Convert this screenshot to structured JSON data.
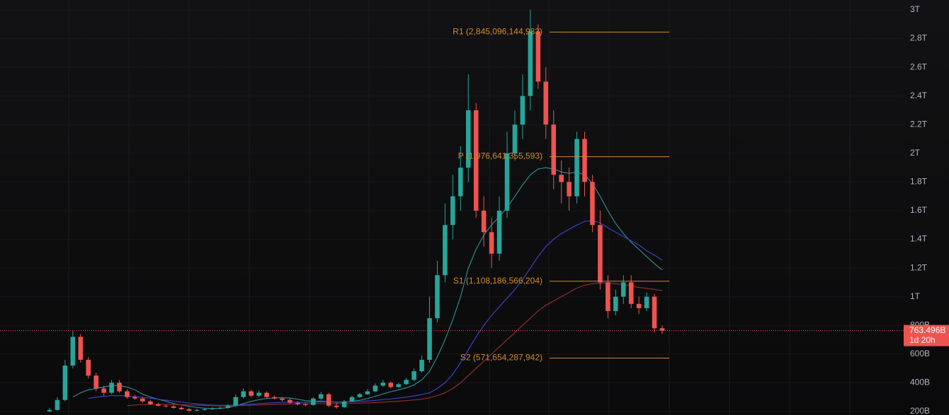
{
  "chart_data": {
    "type": "candlestick",
    "ylim": [
      175,
      3069
    ],
    "yticks": [
      {
        "value": 200,
        "label": "200B"
      },
      {
        "value": 400,
        "label": "400B"
      },
      {
        "value": 600,
        "label": "600B"
      },
      {
        "value": 800,
        "label": "800B"
      },
      {
        "value": 1000,
        "label": "1T"
      },
      {
        "value": 1200,
        "label": "1.2T"
      },
      {
        "value": 1400,
        "label": "1.4T"
      },
      {
        "value": 1600,
        "label": "1.6T"
      },
      {
        "value": 1800,
        "label": "1.8T"
      },
      {
        "value": 2000,
        "label": "2T"
      },
      {
        "value": 2200,
        "label": "2.2T"
      },
      {
        "value": 2400,
        "label": "2.4T"
      },
      {
        "value": 2600,
        "label": "2.6T"
      },
      {
        "value": 2800,
        "label": "2.8T"
      },
      {
        "value": 3000,
        "label": "3T"
      }
    ],
    "up_color": "#26a69a",
    "down_color": "#ef5350",
    "open": [
      200,
      210,
      280,
      520,
      720,
      560,
      450,
      360,
      330,
      400,
      340,
      300,
      290,
      270,
      250,
      240,
      235,
      225,
      215,
      205,
      210,
      215,
      220,
      225,
      240,
      300,
      340,
      310,
      330,
      300,
      290,
      280,
      260,
      250,
      245,
      290,
      320,
      240,
      230,
      270,
      300,
      320,
      340,
      380,
      400,
      370,
      390,
      420,
      480,
      560,
      850,
      1150,
      1500,
      1700,
      1900,
      2300,
      1600,
      1450,
      1300,
      1600,
      2000,
      2200,
      2400,
      2850,
      2500,
      2200,
      1850,
      1800,
      1700,
      2100,
      1800,
      1500,
      1100,
      900,
      1000,
      1100,
      950,
      920,
      1000,
      780
    ],
    "high": [
      225,
      300,
      560,
      760,
      740,
      580,
      470,
      380,
      420,
      420,
      355,
      315,
      300,
      280,
      260,
      250,
      245,
      235,
      225,
      220,
      225,
      230,
      235,
      250,
      320,
      360,
      350,
      345,
      340,
      310,
      300,
      290,
      270,
      260,
      300,
      335,
      330,
      260,
      280,
      310,
      330,
      355,
      395,
      420,
      410,
      400,
      435,
      500,
      590,
      1000,
      1250,
      1650,
      1850,
      2050,
      2550,
      2350,
      1700,
      1550,
      1700,
      2150,
      2300,
      2550,
      3000,
      2900,
      2600,
      2300,
      1950,
      1900,
      2150,
      2150,
      1850,
      1600,
      1150,
      1050,
      1150,
      1150,
      1000,
      1030,
      1020,
      800
    ],
    "low": [
      195,
      205,
      270,
      500,
      540,
      430,
      340,
      310,
      320,
      330,
      290,
      280,
      260,
      245,
      235,
      228,
      220,
      210,
      200,
      200,
      205,
      210,
      215,
      220,
      232,
      290,
      300,
      300,
      295,
      285,
      270,
      250,
      240,
      235,
      240,
      280,
      230,
      220,
      225,
      265,
      295,
      315,
      335,
      370,
      360,
      365,
      385,
      410,
      470,
      540,
      820,
      1100,
      1400,
      1600,
      1800,
      1550,
      1350,
      1200,
      1250,
      1550,
      1950,
      2100,
      2300,
      2450,
      2100,
      1750,
      1650,
      1600,
      1650,
      1700,
      1450,
      1050,
      850,
      870,
      950,
      920,
      880,
      900,
      750,
      740
    ],
    "close": [
      210,
      280,
      520,
      720,
      560,
      450,
      360,
      330,
      400,
      340,
      300,
      290,
      270,
      250,
      240,
      235,
      225,
      215,
      205,
      210,
      215,
      220,
      225,
      240,
      300,
      340,
      310,
      330,
      300,
      290,
      280,
      260,
      250,
      245,
      290,
      320,
      240,
      230,
      270,
      300,
      320,
      340,
      380,
      400,
      370,
      390,
      420,
      480,
      560,
      850,
      1150,
      1500,
      1700,
      1900,
      2300,
      1600,
      1450,
      1300,
      1600,
      2000,
      2200,
      2400,
      2850,
      2500,
      2200,
      1850,
      1800,
      1700,
      2100,
      1800,
      1500,
      1100,
      900,
      1000,
      1100,
      950,
      920,
      1000,
      780,
      763.496
    ],
    "series": [
      {
        "color": "#2b8a8c",
        "values": [
          null,
          null,
          null,
          300,
          330,
          350,
          360,
          370,
          380,
          380,
          370,
          350,
          320,
          300,
          285,
          270,
          255,
          245,
          235,
          228,
          222,
          220,
          222,
          226,
          240,
          255,
          270,
          282,
          290,
          295,
          296,
          293,
          285,
          275,
          272,
          272,
          268,
          264,
          265,
          270,
          278,
          290,
          305,
          322,
          337,
          350,
          365,
          385,
          420,
          480,
          580,
          700,
          840,
          1000,
          1200,
          1330,
          1430,
          1500,
          1560,
          1620,
          1700,
          1780,
          1850,
          1890,
          1900,
          1890,
          1870,
          1860,
          1870,
          1850,
          1790,
          1700,
          1600,
          1510,
          1440,
          1380,
          1330,
          1280,
          1230,
          1186
        ]
      },
      {
        "color": "#3d3fc0",
        "values": [
          null,
          null,
          null,
          null,
          null,
          290,
          300,
          305,
          310,
          310,
          308,
          303,
          298,
          292,
          285,
          278,
          272,
          265,
          258,
          252,
          247,
          244,
          242,
          242,
          244,
          247,
          250,
          254,
          258,
          261,
          263,
          264,
          264,
          264,
          265,
          266,
          266,
          266,
          267,
          268,
          270,
          273,
          277,
          282,
          287,
          293,
          300,
          308,
          318,
          330,
          360,
          400,
          460,
          540,
          630,
          720,
          800,
          870,
          930,
          990,
          1050,
          1120,
          1200,
          1280,
          1350,
          1400,
          1440,
          1470,
          1500,
          1525,
          1530,
          1515,
          1480,
          1450,
          1420,
          1390,
          1360,
          1320,
          1290,
          1255
        ]
      },
      {
        "color": "#8e2b2b",
        "values": [
          null,
          null,
          null,
          null,
          null,
          null,
          null,
          null,
          null,
          null,
          240,
          245,
          248,
          250,
          250,
          250,
          249,
          247,
          245,
          243,
          241,
          240,
          239,
          239,
          240,
          241,
          243,
          245,
          247,
          249,
          251,
          252,
          253,
          253,
          254,
          255,
          255,
          255,
          256,
          257,
          258,
          260,
          262,
          265,
          268,
          271,
          275,
          280,
          286,
          295,
          310,
          330,
          360,
          400,
          450,
          500,
          550,
          600,
          650,
          700,
          750,
          800,
          850,
          900,
          940,
          970,
          1000,
          1030,
          1060,
          1080,
          1090,
          1095,
          1095,
          1090,
          1085,
          1075,
          1065,
          1058,
          1050,
          1043
        ]
      }
    ],
    "pivots": [
      {
        "value": 2845.096144983,
        "label": "R1 (2,845,096,144,983)"
      },
      {
        "value": 1976.641355593,
        "label": "P (1,976,641,355,593)"
      },
      {
        "value": 1108.186566204,
        "label": "S1 (1,108,186,566,204)"
      },
      {
        "value": 571.654287942,
        "label": "S2 (571,654,287,942)"
      }
    ],
    "pivot_color": "#d3892b",
    "last_price": {
      "value": 763.496,
      "label": "763.496B",
      "countdown": "1d 20h",
      "color": "#ef5350"
    }
  }
}
